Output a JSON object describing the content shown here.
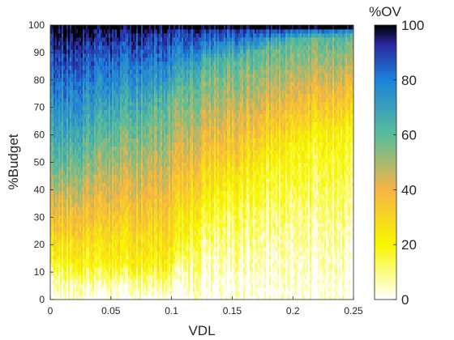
{
  "chart_data": {
    "type": "heatmap",
    "title": "",
    "xlabel": "VDL",
    "ylabel": "%Budget",
    "xlim": [
      0,
      0.25
    ],
    "ylim": [
      0,
      100
    ],
    "x_ticks": [
      "0",
      "0.05",
      "0.1",
      "0.15",
      "0.2",
      "0.25"
    ],
    "y_ticks": [
      "0",
      "10",
      "20",
      "30",
      "40",
      "50",
      "60",
      "70",
      "80",
      "90",
      "100"
    ],
    "colorbar": {
      "label": "%OV",
      "range": [
        0,
        100
      ],
      "ticks": [
        "0",
        "20",
        "40",
        "60",
        "80",
        "100"
      ],
      "colormap": [
        "#ffffff",
        "#f7f700",
        "#f6b443",
        "#58bd9a",
        "#1c82db",
        "#2a27a0",
        "#000000"
      ]
    },
    "notes_visible_pattern": {
      "description_values": [
        {
          "vdl": 0.0,
          "budget_pct_for_ov_20": 15,
          "budget_pct_for_ov_60": 50,
          "budget_pct_for_ov_90": 90
        },
        {
          "vdl": 0.05,
          "budget_pct_for_ov_20": 12,
          "budget_pct_for_ov_60": 60,
          "budget_pct_for_ov_90": 93
        },
        {
          "vdl": 0.1,
          "budget_pct_for_ov_20": 12,
          "budget_pct_for_ov_60": 72,
          "budget_pct_for_ov_90": 96
        },
        {
          "vdl": 0.12,
          "budget_pct_for_ov_20": 30,
          "budget_pct_for_ov_60": 82,
          "budget_pct_for_ov_90": 98
        },
        {
          "vdl": 0.2,
          "budget_pct_for_ov_20": 55,
          "budget_pct_for_ov_60": 95,
          "budget_pct_for_ov_90": 99
        },
        {
          "vdl": 0.25,
          "budget_pct_for_ov_20": 62,
          "budget_pct_for_ov_60": 96,
          "budget_pct_for_ov_90": 99
        }
      ]
    }
  }
}
